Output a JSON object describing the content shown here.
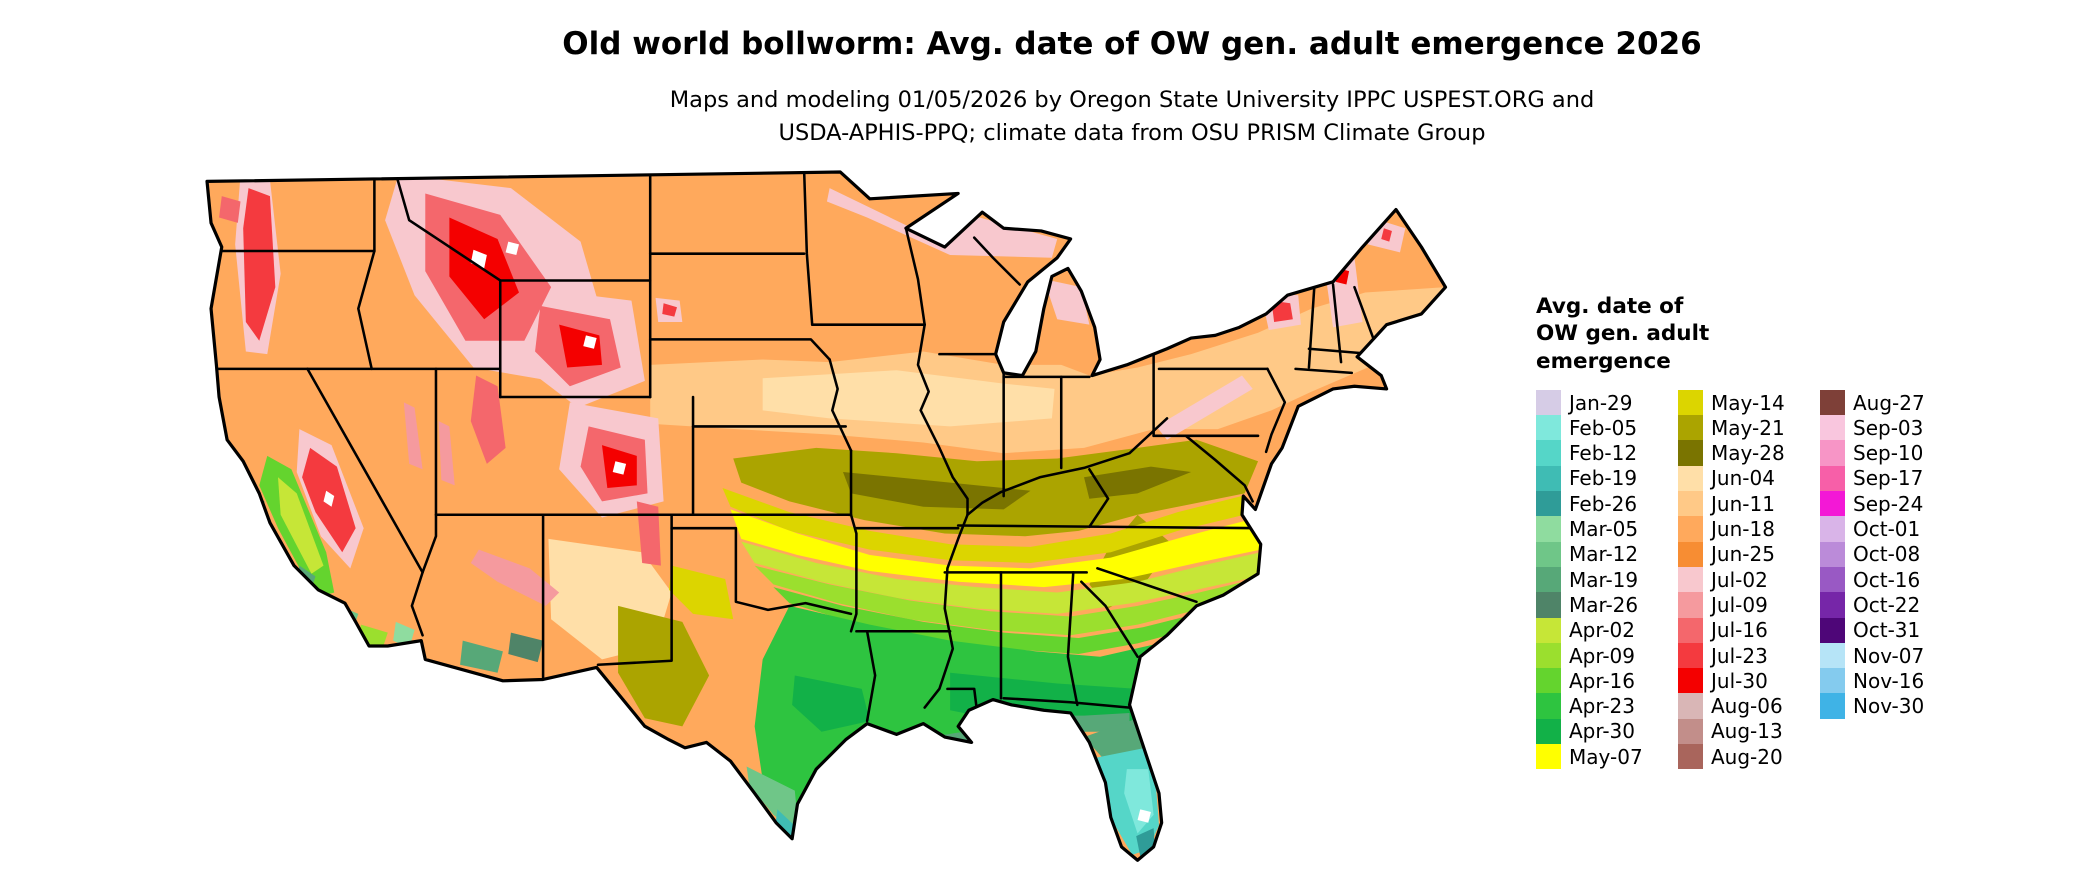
{
  "header": {
    "title": "Old world bollworm: Avg. date of OW gen. adult emergence 2026",
    "subtitle_line1": "Maps and modeling 01/05/2026 by Oregon State University IPPC USPEST.ORG and",
    "subtitle_line2": "USDA-APHIS-PPQ; climate data from OSU PRISM Climate Group"
  },
  "legend": {
    "title_lines": [
      "Avg. date of",
      "OW gen. adult",
      "emergence"
    ],
    "columns": [
      {
        "items": [
          {
            "label": "Jan-29",
            "color": "#D6CCE6"
          },
          {
            "label": "Feb-05",
            "color": "#7FE8DC"
          },
          {
            "label": "Feb-12",
            "color": "#55D6C8"
          },
          {
            "label": "Feb-19",
            "color": "#3FBCB4"
          },
          {
            "label": "Feb-26",
            "color": "#2F9C98"
          },
          {
            "label": "Mar-05",
            "color": "#8FDC9F"
          },
          {
            "label": "Mar-12",
            "color": "#6FC688"
          },
          {
            "label": "Mar-19",
            "color": "#57A878"
          },
          {
            "label": "Mar-26",
            "color": "#4F8468"
          },
          {
            "label": "Apr-02",
            "color": "#C6E637"
          },
          {
            "label": "Apr-09",
            "color": "#9BDF2E"
          },
          {
            "label": "Apr-16",
            "color": "#64D42E"
          },
          {
            "label": "Apr-23",
            "color": "#2EC440"
          },
          {
            "label": "Apr-30",
            "color": "#12B148"
          },
          {
            "label": "May-07",
            "color": "#FFFF00"
          }
        ]
      },
      {
        "items": [
          {
            "label": "May-14",
            "color": "#DCD500"
          },
          {
            "label": "May-21",
            "color": "#ABA400"
          },
          {
            "label": "May-28",
            "color": "#7A7400"
          },
          {
            "label": "Jun-04",
            "color": "#FFDFA8"
          },
          {
            "label": "Jun-11",
            "color": "#FFC987"
          },
          {
            "label": "Jun-18",
            "color": "#FFA95C"
          },
          {
            "label": "Jun-25",
            "color": "#F78D33"
          },
          {
            "label": "Jul-02",
            "color": "#F8C8CE"
          },
          {
            "label": "Jul-09",
            "color": "#F59A9E"
          },
          {
            "label": "Jul-16",
            "color": "#F4676C"
          },
          {
            "label": "Jul-23",
            "color": "#F43A3F"
          },
          {
            "label": "Jul-30",
            "color": "#F40000"
          },
          {
            "label": "Aug-06",
            "color": "#D9B6B6"
          },
          {
            "label": "Aug-13",
            "color": "#C28E8A"
          },
          {
            "label": "Aug-20",
            "color": "#A9655C"
          }
        ]
      },
      {
        "items": [
          {
            "label": "Aug-27",
            "color": "#7E4038"
          },
          {
            "label": "Sep-03",
            "color": "#F9C6DE"
          },
          {
            "label": "Sep-10",
            "color": "#F795C6"
          },
          {
            "label": "Sep-17",
            "color": "#F75FA8"
          },
          {
            "label": "Sep-24",
            "color": "#F318D6"
          },
          {
            "label": "Oct-01",
            "color": "#D9B4E8"
          },
          {
            "label": "Oct-08",
            "color": "#BB8BD9"
          },
          {
            "label": "Oct-16",
            "color": "#9959C4"
          },
          {
            "label": "Oct-22",
            "color": "#7626A8"
          },
          {
            "label": "Oct-31",
            "color": "#4E0678"
          },
          {
            "label": "Nov-07",
            "color": "#B6E4F7"
          },
          {
            "label": "Nov-16",
            "color": "#84CBEE"
          },
          {
            "label": "Nov-30",
            "color": "#3FB3E6"
          }
        ]
      }
    ]
  },
  "map": {
    "no_data_color": "#FFFFFF"
  }
}
